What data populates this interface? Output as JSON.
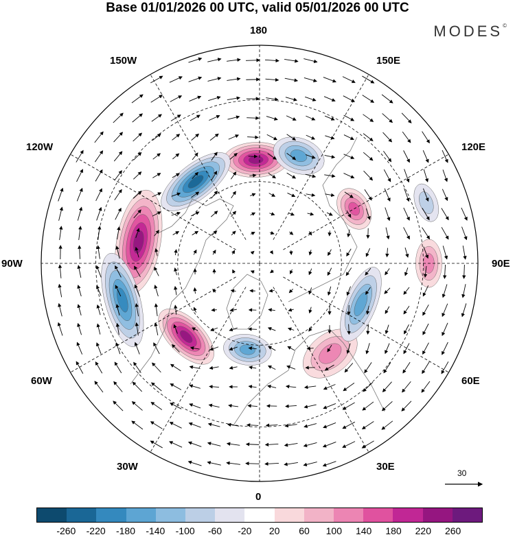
{
  "header": {
    "title": "Base 01/01/2026 00 UTC, valid 05/01/2026 00 UTC",
    "brand": "MODES",
    "brand_mark": "©"
  },
  "map": {
    "projection": "north-polar-stereographic",
    "longitude_labels": {
      "top": "180",
      "top_right": "150E",
      "right_upper": "120E",
      "right": "90E",
      "right_lower": "60E",
      "bottom_right": "30E",
      "bottom": "0",
      "bottom_left": "30W",
      "left_lower": "60W",
      "left": "90W",
      "left_upper": "120W",
      "top_left": "150W"
    },
    "reference_vector_label": "30"
  },
  "colorbar": {
    "colors": [
      "#0d4a6e",
      "#1a6796",
      "#3489be",
      "#5da5d3",
      "#8dbde0",
      "#bccfe6",
      "#e3e3ef",
      "#ffffff",
      "#f9d9dc",
      "#f2b3c7",
      "#ec85b3",
      "#e0529f",
      "#c12795",
      "#951680",
      "#6d1a7d"
    ],
    "labels": [
      "-260",
      "-220",
      "-180",
      "-140",
      "-100",
      "-60",
      "-20",
      "20",
      "60",
      "100",
      "140",
      "180",
      "220",
      "260"
    ]
  },
  "anomalies": [
    {
      "name": "anomaly-pos-pacific",
      "value": 240,
      "lon": -178,
      "lat": 52,
      "major": 15,
      "minor": 8
    },
    {
      "name": "anomaly-neg-alaska-gulf",
      "value": -250,
      "lon": -142,
      "lat": 52,
      "major": 19,
      "minor": 8
    },
    {
      "name": "anomaly-neg-kamchatka",
      "value": -140,
      "lon": 160,
      "lat": 48,
      "major": 12,
      "minor": 8
    },
    {
      "name": "anomaly-pos-north-america",
      "value": 230,
      "lon": -100,
      "lat": 45,
      "major": 24,
      "minor": 10
    },
    {
      "name": "anomaly-neg-eastern-us",
      "value": -200,
      "lon": -75,
      "lat": 38,
      "major": 22,
      "minor": 8
    },
    {
      "name": "anomaly-pos-atlantic",
      "value": 230,
      "lon": -45,
      "lat": 52,
      "major": 16,
      "minor": 8
    },
    {
      "name": "anomaly-neg-north-atlantic",
      "value": -140,
      "lon": -8,
      "lat": 58,
      "major": 11,
      "minor": 7
    },
    {
      "name": "anomaly-pos-europe",
      "value": 110,
      "lon": 38,
      "lat": 48,
      "major": 14,
      "minor": 9
    },
    {
      "name": "anomaly-neg-siberia",
      "value": -170,
      "lon": 68,
      "lat": 50,
      "major": 18,
      "minor": 7
    },
    {
      "name": "anomaly-pos-east-asia",
      "value": 170,
      "lon": 120,
      "lat": 50,
      "major": 10,
      "minor": 7
    },
    {
      "name": "anomaly-pos-central-asia",
      "value": 120,
      "lon": 90,
      "lat": 28,
      "major": 11,
      "minor": 6
    },
    {
      "name": "anomaly-neg-far-east",
      "value": -90,
      "lon": 110,
      "lat": 25,
      "major": 9,
      "minor": 5
    }
  ]
}
